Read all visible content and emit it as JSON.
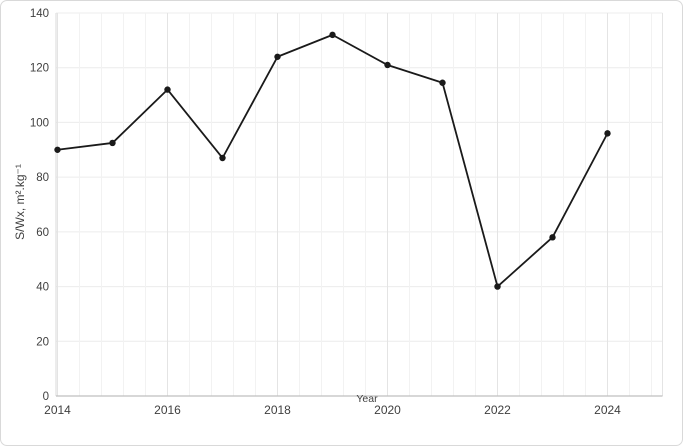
{
  "figure": {
    "background": "#ffffff",
    "frame_border_color": "#d9d9d9"
  },
  "chart_data": {
    "type": "line",
    "title": "",
    "x": [
      2014,
      2015,
      2016,
      2017,
      2018,
      2019,
      2020,
      2021,
      2022,
      2023,
      2024
    ],
    "series": [
      {
        "name": "S/Wx",
        "values": [
          90,
          92.5,
          112,
          87,
          124,
          132,
          121,
          114.5,
          40,
          58,
          96
        ]
      }
    ],
    "xlabel": "Year",
    "ylabel": "S/Wx, m².kg⁻¹",
    "ylim": [
      0,
      140
    ],
    "ytick_step": 20,
    "yticks": [
      0,
      20,
      40,
      60,
      80,
      100,
      120,
      140
    ],
    "xticks": [
      2014,
      2016,
      2018,
      2020,
      2022,
      2024
    ],
    "x_minor_grid_interval_years": 0.4,
    "grid": "on",
    "legend": "none",
    "marker": "circle",
    "colors": {
      "line": "#1a1a1a",
      "marker": "#1a1a1a",
      "grid_h": "#ececec",
      "grid_v_minor": "#f2f2f2",
      "grid_v_major": "#e4e4e4",
      "axis_x": "#bfbfbf",
      "axis_y": "#d9d9d9",
      "tick_text": "#3f3f3f"
    }
  }
}
